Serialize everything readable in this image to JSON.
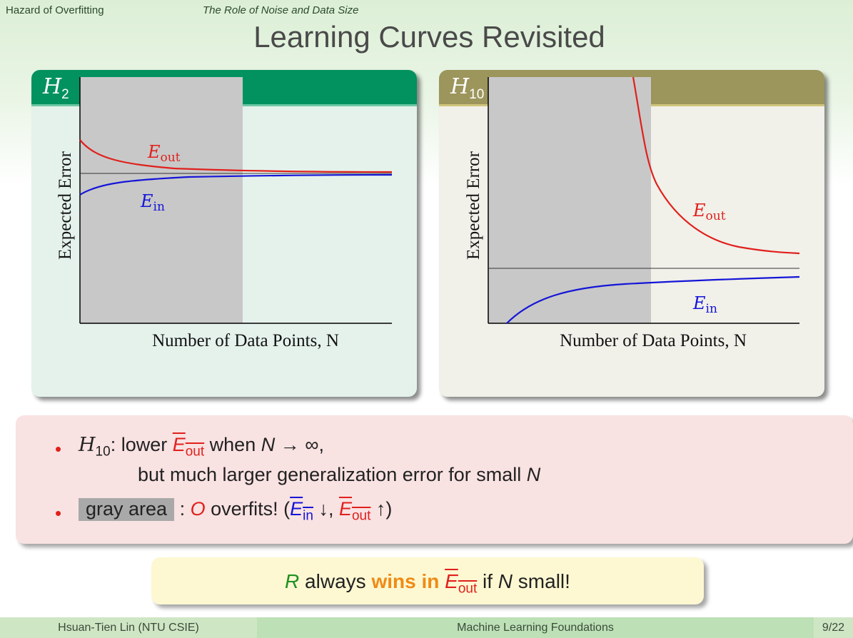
{
  "header": {
    "section": "Hazard of Overfitting",
    "subsection": "The Role of Noise and Data Size",
    "title": "Learning Curves Revisited"
  },
  "left_block": {
    "label": "H",
    "label_sub": "2"
  },
  "right_block": {
    "label": "H",
    "label_sub": "10"
  },
  "chart_data": [
    {
      "type": "line",
      "panel": "H2",
      "xlabel": "Number of Data Points, N",
      "ylabel": "Expected Error",
      "shaded_region": "small N (overfitting zone)",
      "series": [
        {
          "name": "E_out",
          "color": "#e0201c",
          "shape": "decreasing toward asymptote from above"
        },
        {
          "name": "E_in",
          "color": "#1515d8",
          "shape": "increasing toward asymptote from below"
        }
      ],
      "labels": {
        "eout": "E",
        "eout_sub": "out",
        "ein": "E",
        "ein_sub": "in"
      }
    },
    {
      "type": "line",
      "panel": "H10",
      "xlabel": "Number of Data Points, N",
      "ylabel": "Expected Error",
      "shaded_region": "small N (overfitting zone)",
      "series": [
        {
          "name": "E_out",
          "color": "#e0201c",
          "shape": "steep decrease from very high"
        },
        {
          "name": "E_in",
          "color": "#1515d8",
          "shape": "rise from very low toward asymptote"
        }
      ],
      "labels": {
        "eout": "E",
        "eout_sub": "out",
        "ein": "E",
        "ein_sub": "in"
      }
    }
  ],
  "bullets": {
    "b1_h": "H",
    "b1_h_sub": "10",
    "b1_colon": ": lower ",
    "b1_eout": "E",
    "b1_eout_sub": "out",
    "b1_when": " when ",
    "b1_n": "N",
    "b1_arrow": " → ∞,",
    "b1_line2_a": "but much larger generalization error for small ",
    "b1_line2_n": "N",
    "b2_gray": "gray area",
    "b2_colon": " : ",
    "b2_o": "O",
    "b2_over": " overfits! (",
    "b2_ein": "E",
    "b2_ein_sub": "in",
    "b2_down": " ↓, ",
    "b2_eout": "E",
    "b2_eout_sub": "out",
    "b2_up": " ↑)"
  },
  "remark": {
    "r": "R",
    "always": " always ",
    "wins": "wins in ",
    "e": "E",
    "e_sub": "out",
    "rest": " if ",
    "n": "N",
    "small": " small!"
  },
  "footer": {
    "author": "Hsuan-Tien Lin  (NTU CSIE)",
    "course": "Machine Learning Foundations",
    "page": "9/22"
  }
}
